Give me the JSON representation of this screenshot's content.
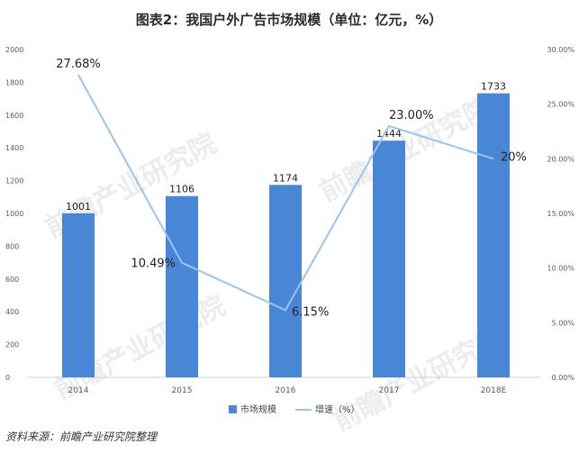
{
  "chart_data": {
    "type": "bar",
    "title": "图表2：我国户外广告市场规模（单位：亿元，%）",
    "categories": [
      "2014",
      "2015",
      "2016",
      "2017",
      "2018E"
    ],
    "series": [
      {
        "name": "市场规模",
        "type": "bar",
        "axis": "left",
        "values": [
          1001,
          1106,
          1174,
          1444,
          1733
        ],
        "labels": [
          "1001",
          "1106",
          "1174",
          "1444",
          "1733"
        ],
        "color": "#4a86d6"
      },
      {
        "name": "增速（%）",
        "type": "line",
        "axis": "right",
        "values": [
          27.68,
          10.49,
          6.15,
          23.0,
          20.0
        ],
        "labels": [
          "27.68%",
          "10.49%",
          "6.15%",
          "23.00%",
          "20%"
        ],
        "color": "#9dc3ea"
      }
    ],
    "y_left": {
      "range": [
        0,
        2000
      ],
      "ticks": [
        "0",
        "200",
        "400",
        "600",
        "800",
        "1000",
        "1200",
        "1400",
        "1600",
        "1800",
        "2000"
      ]
    },
    "y_right": {
      "range": [
        0,
        30
      ],
      "ticks": [
        "0.00%",
        "5.00%",
        "10.00%",
        "15.00%",
        "20.00%",
        "25.00%",
        "30.00%"
      ]
    },
    "grid": false,
    "legend": "bottom"
  },
  "source": "资料来源：前瞻产业研究院整理",
  "watermark": "前瞻产业研究院"
}
